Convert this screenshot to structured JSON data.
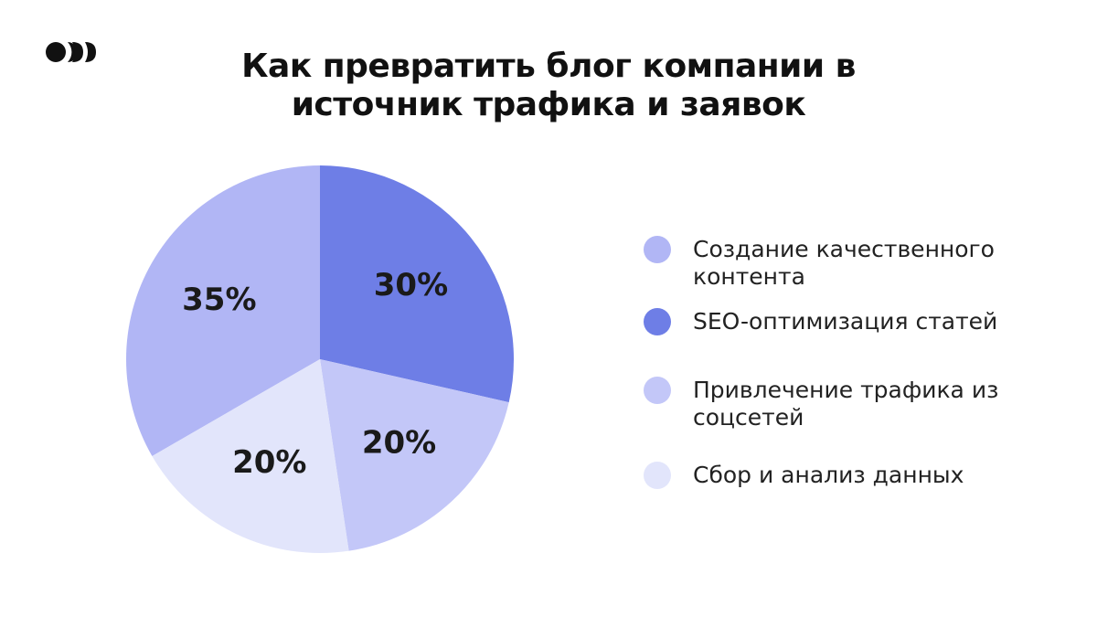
{
  "chart_data": {
    "type": "pie",
    "title": "Как превратить блог компании в источник трафика и заявок",
    "categories": [
      "Создание качественного контента",
      "SEO-оптимизация статей",
      "Привлечение трафика из соцсетей",
      "Сбор и анализ данных"
    ],
    "values": [
      35,
      30,
      20,
      20
    ],
    "value_labels": [
      "35%",
      "30%",
      "20%",
      "20%"
    ],
    "colors": [
      "#b1b6f5",
      "#6e7ee6",
      "#c3c7f8",
      "#e2e5fb"
    ],
    "legend": "right"
  }
}
